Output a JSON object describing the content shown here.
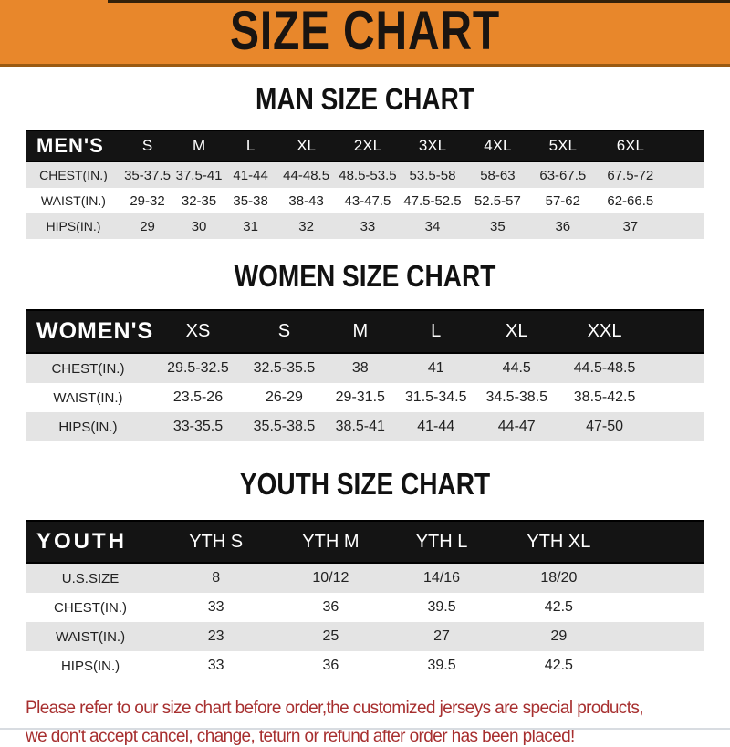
{
  "banner": {
    "title": "SIZE CHART"
  },
  "sections": [
    {
      "id": "man",
      "title": "MAN SIZE CHART",
      "header_label": "MEN'S",
      "columns": [
        "S",
        "M",
        "L",
        "XL",
        "2XL",
        "3XL",
        "4XL",
        "5XL",
        "6XL"
      ],
      "rows": [
        {
          "label": "CHEST(IN.)",
          "values": [
            "35-37.5",
            "37.5-41",
            "41-44",
            "44-48.5",
            "48.5-53.5",
            "53.5-58",
            "58-63",
            "63-67.5",
            "67.5-72"
          ]
        },
        {
          "label": "WAIST(IN.)",
          "values": [
            "29-32",
            "32-35",
            "35-38",
            "38-43",
            "43-47.5",
            "47.5-52.5",
            "52.5-57",
            "57-62",
            "62-66.5"
          ]
        },
        {
          "label": "HIPS(IN.)",
          "values": [
            "29",
            "30",
            "31",
            "32",
            "33",
            "34",
            "35",
            "36",
            "37"
          ]
        }
      ]
    },
    {
      "id": "women",
      "title": "WOMEN SIZE CHART",
      "header_label": "WOMEN'S",
      "columns": [
        "XS",
        "S",
        "M",
        "L",
        "XL",
        "XXL"
      ],
      "rows": [
        {
          "label": "CHEST(IN.)",
          "values": [
            "29.5-32.5",
            "32.5-35.5",
            "38",
            "41",
            "44.5",
            "44.5-48.5"
          ]
        },
        {
          "label": "WAIST(IN.)",
          "values": [
            "23.5-26",
            "26-29",
            "29-31.5",
            "31.5-34.5",
            "34.5-38.5",
            "38.5-42.5"
          ]
        },
        {
          "label": "HIPS(IN.)",
          "values": [
            "33-35.5",
            "35.5-38.5",
            "38.5-41",
            "41-44",
            "44-47",
            "47-50"
          ]
        }
      ]
    },
    {
      "id": "youth",
      "title": "YOUTH SIZE CHART",
      "header_label": "YOUTH",
      "columns": [
        "YTH S",
        "YTH M",
        "YTH L",
        "YTH XL"
      ],
      "rows": [
        {
          "label": "U.S.SIZE",
          "values": [
            "8",
            "10/12",
            "14/16",
            "18/20"
          ]
        },
        {
          "label": "CHEST(IN.)",
          "values": [
            "33",
            "36",
            "39.5",
            "42.5"
          ]
        },
        {
          "label": "WAIST(IN.)",
          "values": [
            "23",
            "25",
            "27",
            "29"
          ]
        },
        {
          "label": "HIPS(IN.)",
          "values": [
            "33",
            "36",
            "39.5",
            "42.5"
          ]
        }
      ]
    }
  ],
  "footer": {
    "line1": "Please refer to our size chart before order,the customized jerseys are special products,",
    "line2": "we don't accept cancel, change, teturn or refund after order has been placed!"
  },
  "colors": {
    "banner_orange": "#E8872B",
    "header_bar_black": "#141414",
    "row_stripe_gray": "#E4E4E4",
    "footer_red": "#A72F2F"
  }
}
